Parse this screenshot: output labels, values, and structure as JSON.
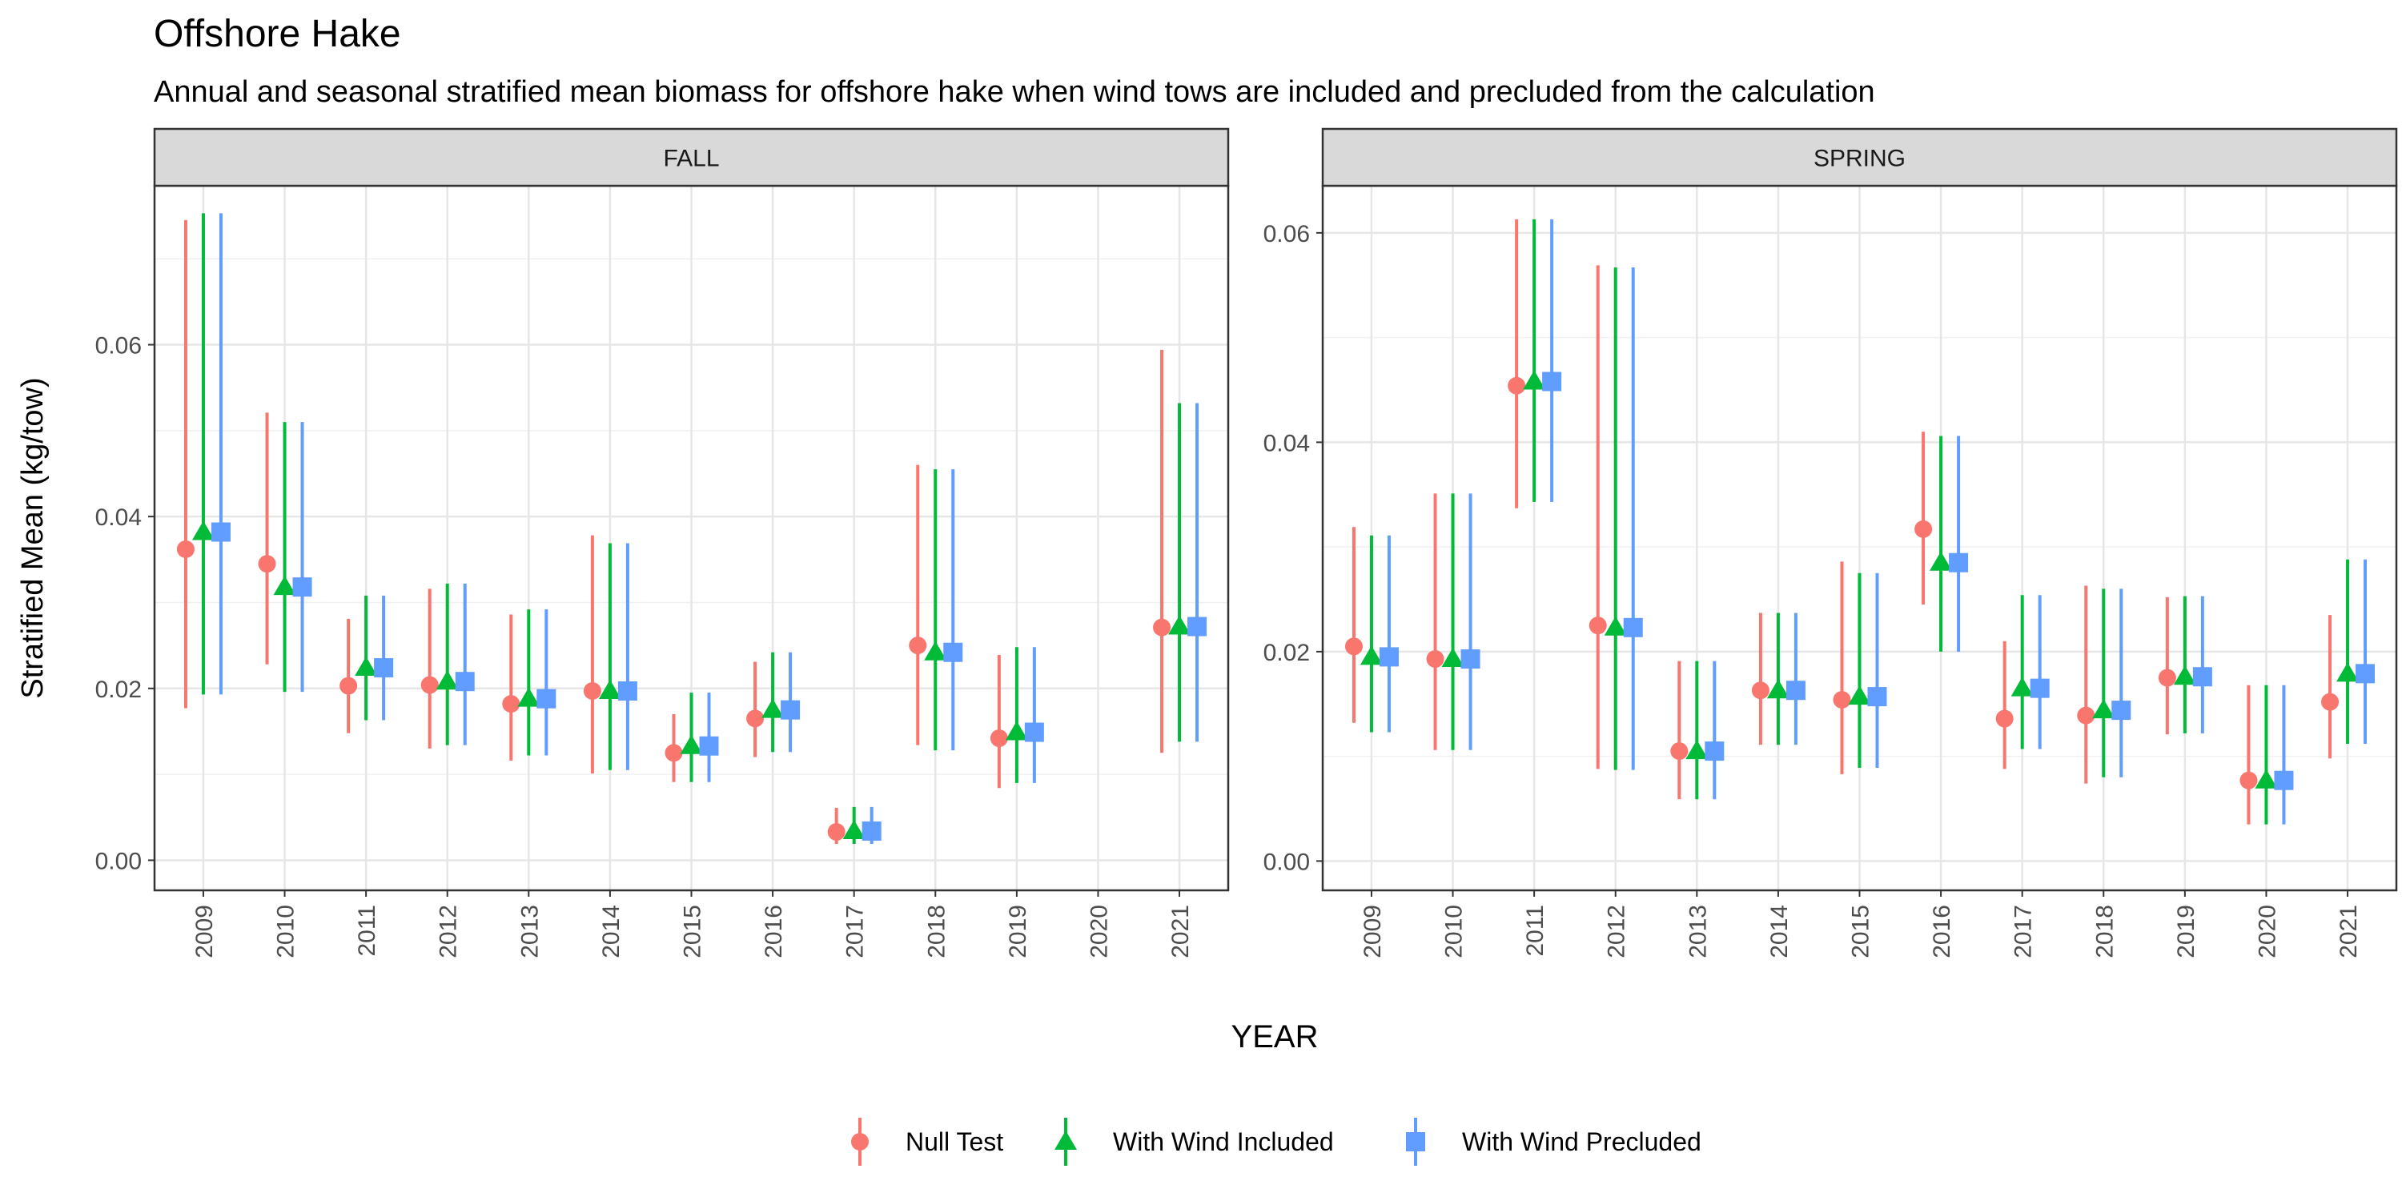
{
  "chart_data": {
    "type": "scatter",
    "title": "Offshore Hake",
    "subtitle": "Annual and seasonal stratified mean biomass for offshore hake when wind tows are included and precluded from the calculation",
    "xlabel": "YEAR",
    "ylabel": "Stratified Mean (kg/tow)",
    "grid": true,
    "legend_position": "bottom",
    "categories": [
      "2009",
      "2010",
      "2011",
      "2012",
      "2013",
      "2014",
      "2015",
      "2016",
      "2017",
      "2018",
      "2019",
      "2020",
      "2021"
    ],
    "series_styles": [
      {
        "name": "Null Test",
        "color": "#F8766D",
        "shape": "circle"
      },
      {
        "name": "With Wind Included",
        "color": "#00BA38",
        "shape": "triangle"
      },
      {
        "name": "With Wind Precluded",
        "color": "#619CFF",
        "shape": "square"
      }
    ],
    "panels": [
      {
        "strip": "FALL",
        "ylim": [
          -0.0035,
          0.0785
        ],
        "yticks": [
          0.0,
          0.02,
          0.04,
          0.06
        ],
        "ytick_labels": [
          "0.00",
          "0.02",
          "0.04",
          "0.06"
        ],
        "series": [
          {
            "name": "Null Test",
            "points": [
              {
                "x": "2009",
                "y": 0.0362,
                "lo": 0.0177,
                "hi": 0.0745
              },
              {
                "x": "2010",
                "y": 0.0345,
                "lo": 0.0228,
                "hi": 0.0521
              },
              {
                "x": "2011",
                "y": 0.0203,
                "lo": 0.0148,
                "hi": 0.0281
              },
              {
                "x": "2012",
                "y": 0.0204,
                "lo": 0.013,
                "hi": 0.0316
              },
              {
                "x": "2013",
                "y": 0.0182,
                "lo": 0.0116,
                "hi": 0.0286
              },
              {
                "x": "2014",
                "y": 0.0197,
                "lo": 0.0101,
                "hi": 0.0378
              },
              {
                "x": "2015",
                "y": 0.0125,
                "lo": 0.0091,
                "hi": 0.017
              },
              {
                "x": "2016",
                "y": 0.0165,
                "lo": 0.012,
                "hi": 0.0231
              },
              {
                "x": "2017",
                "y": 0.0033,
                "lo": 0.0019,
                "hi": 0.0061
              },
              {
                "x": "2018",
                "y": 0.025,
                "lo": 0.0134,
                "hi": 0.046
              },
              {
                "x": "2019",
                "y": 0.0142,
                "lo": 0.0084,
                "hi": 0.0239
              },
              {
                "x": "2021",
                "y": 0.0271,
                "lo": 0.0125,
                "hi": 0.0594
              }
            ]
          },
          {
            "name": "With Wind Included",
            "points": [
              {
                "x": "2009",
                "y": 0.0382,
                "lo": 0.0193,
                "hi": 0.0753
              },
              {
                "x": "2010",
                "y": 0.0318,
                "lo": 0.0196,
                "hi": 0.051
              },
              {
                "x": "2011",
                "y": 0.0224,
                "lo": 0.0163,
                "hi": 0.0308
              },
              {
                "x": "2012",
                "y": 0.0208,
                "lo": 0.0134,
                "hi": 0.0322
              },
              {
                "x": "2013",
                "y": 0.0188,
                "lo": 0.0122,
                "hi": 0.0292
              },
              {
                "x": "2014",
                "y": 0.0197,
                "lo": 0.0105,
                "hi": 0.0369
              },
              {
                "x": "2015",
                "y": 0.0133,
                "lo": 0.0091,
                "hi": 0.0195
              },
              {
                "x": "2016",
                "y": 0.0175,
                "lo": 0.0126,
                "hi": 0.0242
              },
              {
                "x": "2017",
                "y": 0.0034,
                "lo": 0.0019,
                "hi": 0.0062
              },
              {
                "x": "2018",
                "y": 0.0242,
                "lo": 0.0128,
                "hi": 0.0455
              },
              {
                "x": "2019",
                "y": 0.0149,
                "lo": 0.009,
                "hi": 0.0248
              },
              {
                "x": "2021",
                "y": 0.0272,
                "lo": 0.0138,
                "hi": 0.0532
              }
            ]
          },
          {
            "name": "With Wind Precluded",
            "points": [
              {
                "x": "2009",
                "y": 0.0382,
                "lo": 0.0193,
                "hi": 0.0753
              },
              {
                "x": "2010",
                "y": 0.0318,
                "lo": 0.0196,
                "hi": 0.051
              },
              {
                "x": "2011",
                "y": 0.0224,
                "lo": 0.0163,
                "hi": 0.0308
              },
              {
                "x": "2012",
                "y": 0.0208,
                "lo": 0.0134,
                "hi": 0.0322
              },
              {
                "x": "2013",
                "y": 0.0188,
                "lo": 0.0122,
                "hi": 0.0292
              },
              {
                "x": "2014",
                "y": 0.0197,
                "lo": 0.0105,
                "hi": 0.0369
              },
              {
                "x": "2015",
                "y": 0.0133,
                "lo": 0.0091,
                "hi": 0.0195
              },
              {
                "x": "2016",
                "y": 0.0175,
                "lo": 0.0126,
                "hi": 0.0242
              },
              {
                "x": "2017",
                "y": 0.0034,
                "lo": 0.0019,
                "hi": 0.0062
              },
              {
                "x": "2018",
                "y": 0.0242,
                "lo": 0.0128,
                "hi": 0.0455
              },
              {
                "x": "2019",
                "y": 0.0149,
                "lo": 0.009,
                "hi": 0.0248
              },
              {
                "x": "2021",
                "y": 0.0272,
                "lo": 0.0138,
                "hi": 0.0532
              }
            ]
          }
        ]
      },
      {
        "strip": "SPRING",
        "ylim": [
          -0.0028,
          0.0645
        ],
        "yticks": [
          0.0,
          0.02,
          0.04,
          0.06
        ],
        "ytick_labels": [
          "0.00",
          "0.02",
          "0.04",
          "0.06"
        ],
        "series": [
          {
            "name": "Null Test",
            "points": [
              {
                "x": "2009",
                "y": 0.0205,
                "lo": 0.0132,
                "hi": 0.0319
              },
              {
                "x": "2010",
                "y": 0.0193,
                "lo": 0.0106,
                "hi": 0.0351
              },
              {
                "x": "2011",
                "y": 0.0454,
                "lo": 0.0337,
                "hi": 0.0613
              },
              {
                "x": "2012",
                "y": 0.0225,
                "lo": 0.0088,
                "hi": 0.0569
              },
              {
                "x": "2013",
                "y": 0.0105,
                "lo": 0.0059,
                "hi": 0.0191
              },
              {
                "x": "2014",
                "y": 0.0163,
                "lo": 0.0111,
                "hi": 0.0237
              },
              {
                "x": "2015",
                "y": 0.0154,
                "lo": 0.0083,
                "hi": 0.0286
              },
              {
                "x": "2016",
                "y": 0.0317,
                "lo": 0.0245,
                "hi": 0.041
              },
              {
                "x": "2017",
                "y": 0.0136,
                "lo": 0.0088,
                "hi": 0.021
              },
              {
                "x": "2018",
                "y": 0.0139,
                "lo": 0.0074,
                "hi": 0.0263
              },
              {
                "x": "2019",
                "y": 0.0175,
                "lo": 0.0121,
                "hi": 0.0252
              },
              {
                "x": "2020",
                "y": 0.0077,
                "lo": 0.0035,
                "hi": 0.0168
              },
              {
                "x": "2021",
                "y": 0.0152,
                "lo": 0.0098,
                "hi": 0.0235
              }
            ]
          },
          {
            "name": "With Wind Included",
            "points": [
              {
                "x": "2009",
                "y": 0.0195,
                "lo": 0.0123,
                "hi": 0.0311
              },
              {
                "x": "2010",
                "y": 0.0193,
                "lo": 0.0106,
                "hi": 0.0351
              },
              {
                "x": "2011",
                "y": 0.0458,
                "lo": 0.0343,
                "hi": 0.0613
              },
              {
                "x": "2012",
                "y": 0.0223,
                "lo": 0.0087,
                "hi": 0.0567
              },
              {
                "x": "2013",
                "y": 0.0105,
                "lo": 0.0059,
                "hi": 0.0191
              },
              {
                "x": "2014",
                "y": 0.0163,
                "lo": 0.0111,
                "hi": 0.0237
              },
              {
                "x": "2015",
                "y": 0.0157,
                "lo": 0.0089,
                "hi": 0.0275
              },
              {
                "x": "2016",
                "y": 0.0285,
                "lo": 0.02,
                "hi": 0.0406
              },
              {
                "x": "2017",
                "y": 0.0165,
                "lo": 0.0107,
                "hi": 0.0254
              },
              {
                "x": "2018",
                "y": 0.0144,
                "lo": 0.008,
                "hi": 0.026
              },
              {
                "x": "2019",
                "y": 0.0176,
                "lo": 0.0122,
                "hi": 0.0253
              },
              {
                "x": "2020",
                "y": 0.0077,
                "lo": 0.0035,
                "hi": 0.0168
              },
              {
                "x": "2021",
                "y": 0.0179,
                "lo": 0.0112,
                "hi": 0.0288
              }
            ]
          },
          {
            "name": "With Wind Precluded",
            "points": [
              {
                "x": "2009",
                "y": 0.0195,
                "lo": 0.0123,
                "hi": 0.0311
              },
              {
                "x": "2010",
                "y": 0.0193,
                "lo": 0.0106,
                "hi": 0.0351
              },
              {
                "x": "2011",
                "y": 0.0458,
                "lo": 0.0343,
                "hi": 0.0613
              },
              {
                "x": "2012",
                "y": 0.0223,
                "lo": 0.0087,
                "hi": 0.0567
              },
              {
                "x": "2013",
                "y": 0.0105,
                "lo": 0.0059,
                "hi": 0.0191
              },
              {
                "x": "2014",
                "y": 0.0163,
                "lo": 0.0111,
                "hi": 0.0237
              },
              {
                "x": "2015",
                "y": 0.0157,
                "lo": 0.0089,
                "hi": 0.0275
              },
              {
                "x": "2016",
                "y": 0.0285,
                "lo": 0.02,
                "hi": 0.0406
              },
              {
                "x": "2017",
                "y": 0.0165,
                "lo": 0.0107,
                "hi": 0.0254
              },
              {
                "x": "2018",
                "y": 0.0144,
                "lo": 0.008,
                "hi": 0.026
              },
              {
                "x": "2019",
                "y": 0.0176,
                "lo": 0.0122,
                "hi": 0.0253
              },
              {
                "x": "2020",
                "y": 0.0077,
                "lo": 0.0035,
                "hi": 0.0168
              },
              {
                "x": "2021",
                "y": 0.0179,
                "lo": 0.0112,
                "hi": 0.0288
              }
            ]
          }
        ]
      }
    ]
  }
}
